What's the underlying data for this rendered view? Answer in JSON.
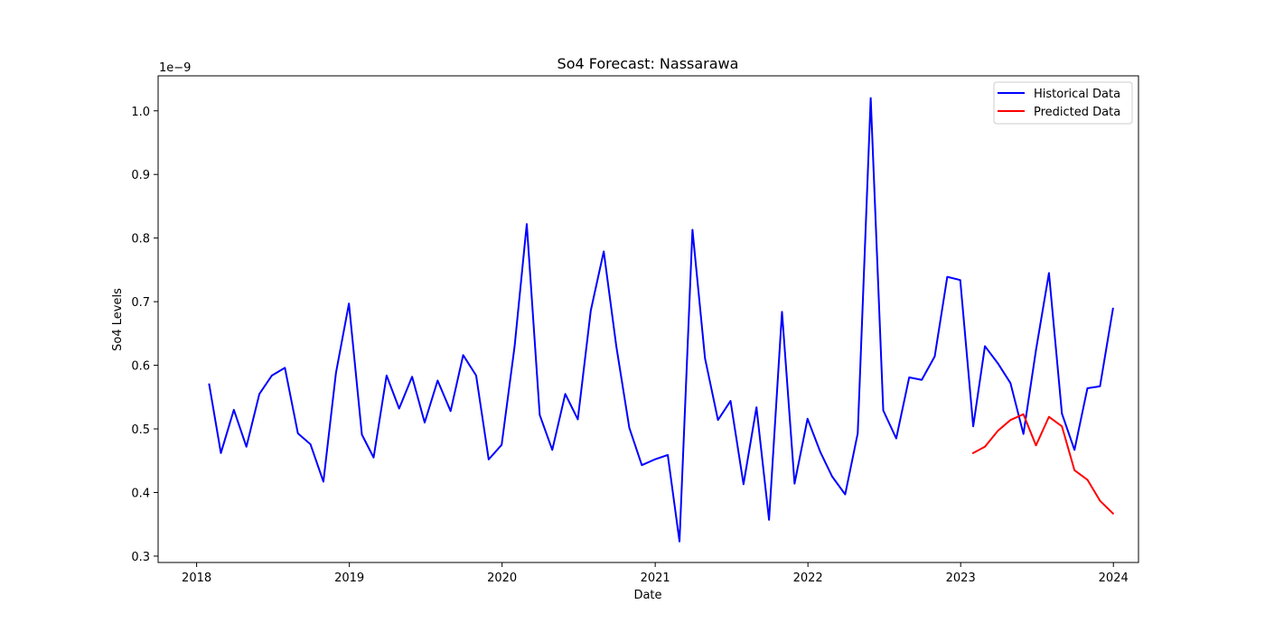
{
  "chart_data": {
    "type": "line",
    "title": "So4 Forecast: Nassarawa",
    "xlabel": "Date",
    "ylabel": "So4 Levels",
    "y_offset_label": "1e−9",
    "y_scale_multiplier": 1e-09,
    "xlim": [
      "2017-10-01",
      "2024-03-01"
    ],
    "ylim": [
      0.29,
      1.055
    ],
    "x_ticks": [
      "2018",
      "2019",
      "2020",
      "2021",
      "2022",
      "2023",
      "2024"
    ],
    "y_ticks": [
      "0.3",
      "0.4",
      "0.5",
      "0.6",
      "0.7",
      "0.8",
      "0.9",
      "1.0"
    ],
    "grid": false,
    "legend_position": "top-right",
    "series": [
      {
        "name": "Historical Data",
        "color": "#0000ff",
        "x": [
          "2018-01-31",
          "2018-02-28",
          "2018-03-31",
          "2018-04-30",
          "2018-05-31",
          "2018-06-30",
          "2018-07-31",
          "2018-08-31",
          "2018-09-30",
          "2018-10-31",
          "2018-11-30",
          "2018-12-31",
          "2019-01-31",
          "2019-02-28",
          "2019-03-31",
          "2019-04-30",
          "2019-05-31",
          "2019-06-30",
          "2019-07-31",
          "2019-08-31",
          "2019-09-30",
          "2019-10-31",
          "2019-11-30",
          "2019-12-31",
          "2020-01-31",
          "2020-02-29",
          "2020-03-31",
          "2020-04-30",
          "2020-05-31",
          "2020-06-30",
          "2020-07-31",
          "2020-08-31",
          "2020-09-30",
          "2020-10-31",
          "2020-11-30",
          "2020-12-31",
          "2021-01-31",
          "2021-02-28",
          "2021-03-31",
          "2021-04-30",
          "2021-05-31",
          "2021-06-30",
          "2021-07-31",
          "2021-08-31",
          "2021-09-30",
          "2021-10-31",
          "2021-11-30",
          "2021-12-31",
          "2022-01-31",
          "2022-02-28",
          "2022-03-31",
          "2022-04-30",
          "2022-05-31",
          "2022-06-30",
          "2022-07-31",
          "2022-08-31",
          "2022-09-30",
          "2022-10-31",
          "2022-11-30",
          "2022-12-31",
          "2023-01-31",
          "2023-02-28",
          "2023-03-31",
          "2023-04-30",
          "2023-05-31",
          "2023-06-30",
          "2023-07-31",
          "2023-08-31",
          "2023-09-30",
          "2023-10-31",
          "2023-11-30",
          "2023-12-31"
        ],
        "values": [
          0.57,
          0.462,
          0.53,
          0.472,
          0.555,
          0.584,
          0.596,
          0.493,
          0.476,
          0.417,
          0.588,
          0.697,
          0.491,
          0.455,
          0.584,
          0.532,
          0.582,
          0.51,
          0.576,
          0.528,
          0.616,
          0.584,
          0.452,
          0.475,
          0.63,
          0.822,
          0.522,
          0.467,
          0.555,
          0.515,
          0.686,
          0.779,
          0.63,
          0.502,
          0.443,
          0.452,
          0.459,
          0.323,
          0.813,
          0.611,
          0.514,
          0.544,
          0.413,
          0.534,
          0.357,
          0.684,
          0.414,
          0.516,
          0.463,
          0.425,
          0.397,
          0.493,
          1.02,
          0.529,
          0.485,
          0.581,
          0.577,
          0.614,
          0.739,
          0.734,
          0.504,
          0.63,
          0.603,
          0.572,
          0.492,
          0.624,
          0.745,
          0.524,
          0.467,
          0.564,
          0.567,
          0.689
        ]
      },
      {
        "name": "Predicted Data",
        "color": "#ff0000",
        "x": [
          "2023-01-31",
          "2023-02-28",
          "2023-03-31",
          "2023-04-30",
          "2023-05-31",
          "2023-06-30",
          "2023-07-31",
          "2023-08-31",
          "2023-09-30",
          "2023-10-31",
          "2023-11-30",
          "2023-12-31"
        ],
        "values": [
          0.462,
          0.472,
          0.497,
          0.514,
          0.523,
          0.474,
          0.519,
          0.504,
          0.435,
          0.42,
          0.387,
          0.367
        ]
      }
    ]
  }
}
